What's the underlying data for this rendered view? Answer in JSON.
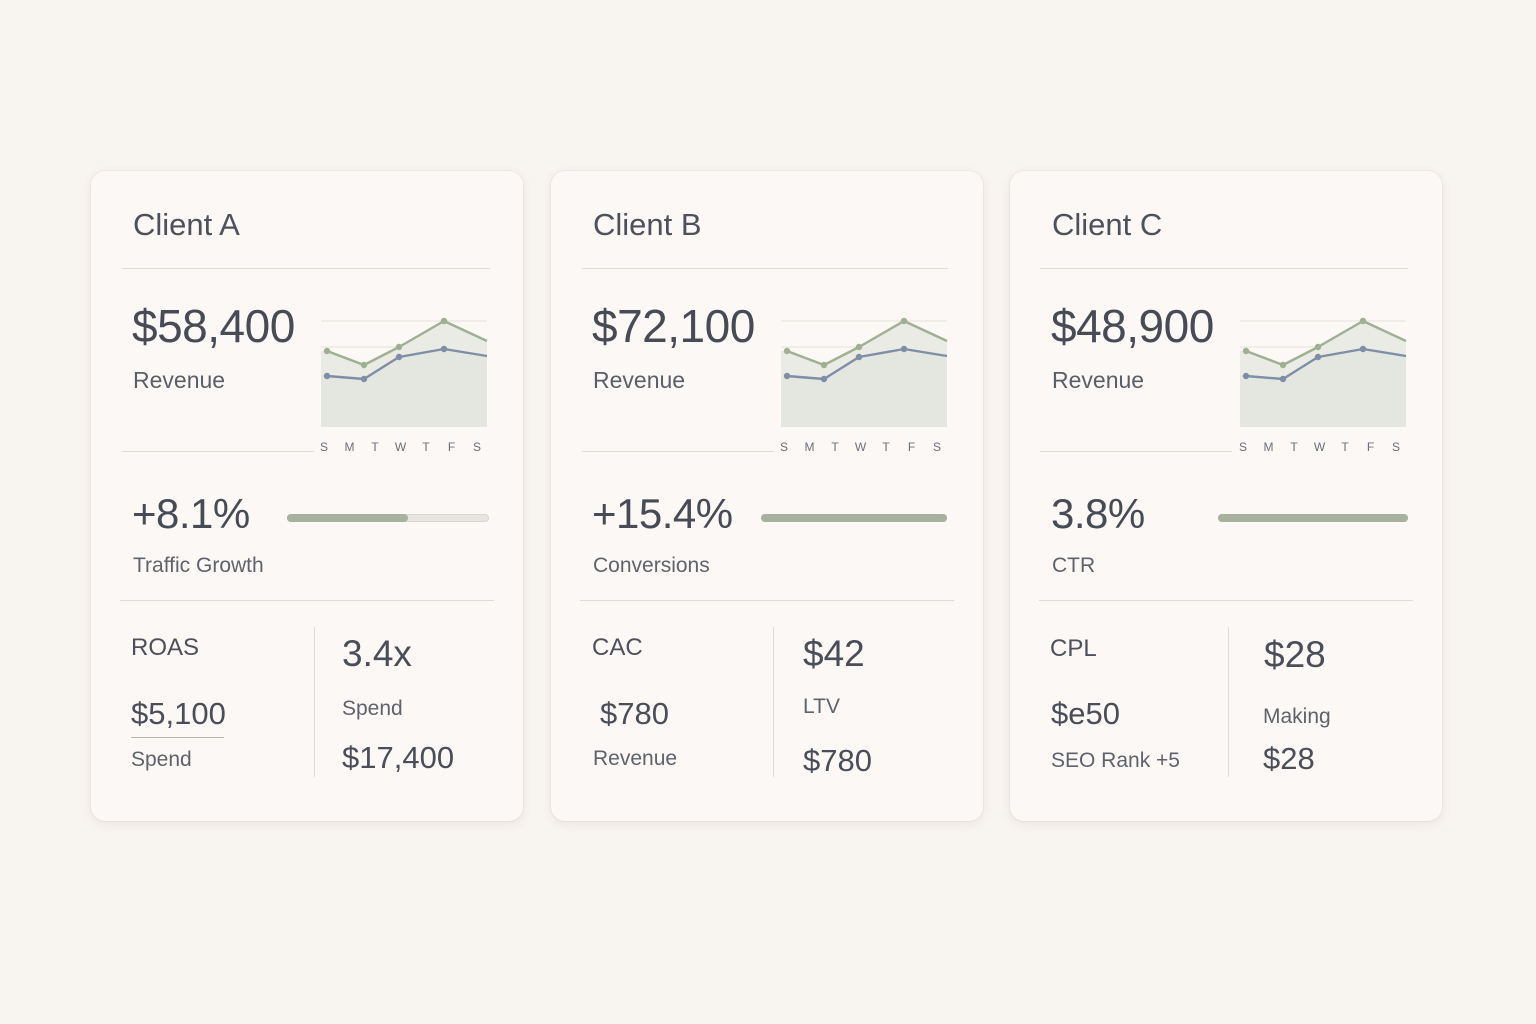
{
  "cards": [
    {
      "title": "Client A",
      "revenue_value": "$58,400",
      "revenue_label": "Revenue",
      "growth_value": "+8.1%",
      "growth_label": "Traffic Growth",
      "growth_bar_fraction": 0.6,
      "metrics": {
        "left_label": "ROAS",
        "left_value": "$5,100",
        "left_caption": "Spend",
        "right_value": "3.4x",
        "right_caption": "Spend",
        "right_value2": "$17,400"
      }
    },
    {
      "title": "Client B",
      "revenue_value": "$72,100",
      "revenue_label": "Revenue",
      "growth_value": "+15.4%",
      "growth_label": "Conversions",
      "growth_bar_fraction": 1.0,
      "metrics": {
        "left_label": "CAC",
        "left_value": "$780",
        "left_caption": "Revenue",
        "right_value": "$42",
        "right_caption": "LTV",
        "right_value2": "$780"
      }
    },
    {
      "title": "Client C",
      "revenue_value": "$48,900",
      "revenue_label": "Revenue",
      "growth_value": "3.8%",
      "growth_label": "CTR",
      "growth_bar_fraction": 1.0,
      "metrics": {
        "left_label": "CPL",
        "left_value": "$e50",
        "left_caption": "SEO Rank +5",
        "right_value": "$28",
        "right_caption": "Making",
        "right_value2": "$28"
      }
    }
  ],
  "weekday_labels": [
    "S",
    "M",
    "T",
    "W",
    "T",
    "F",
    "S"
  ],
  "colors": {
    "page_background": "#f8f4f0",
    "card_background": "#fbf8f5",
    "series_green": "#9fb092",
    "series_blue": "#7f8ea6",
    "bar_fill": "#a7b19d"
  }
}
